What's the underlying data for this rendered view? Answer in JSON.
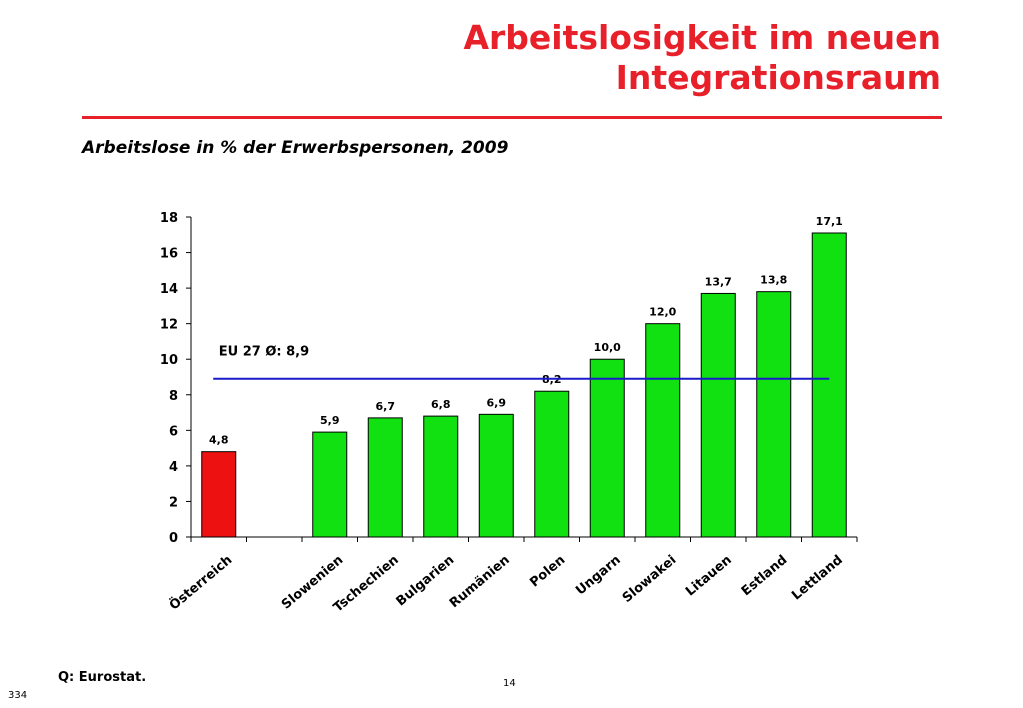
{
  "header": {
    "title_line1": "Arbeitslosigkeit im neuen",
    "title_line2": "Integrationsraum",
    "subtitle": "Arbeitslose in % der Erwerbspersonen, 2009"
  },
  "chart_data": {
    "type": "bar",
    "title": "",
    "xlabel": "",
    "ylabel": "",
    "categories": [
      "Österreich",
      "",
      "Slowenien",
      "Tschechien",
      "Bulgarien",
      "Rumänien",
      "Polen",
      "Ungarn",
      "Slowakei",
      "Litauen",
      "Estland",
      "Lettland"
    ],
    "values": [
      4.8,
      null,
      5.9,
      6.7,
      6.8,
      6.9,
      8.2,
      10.0,
      12.0,
      13.7,
      13.8,
      17.1
    ],
    "value_labels": [
      "4,8",
      "",
      "5,9",
      "6,7",
      "6,8",
      "6,9",
      "8,2",
      "10,0",
      "12,0",
      "13,7",
      "13,8",
      "17,1"
    ],
    "bar_colors": [
      "#ee1111",
      "",
      "#11e011",
      "#11e011",
      "#11e011",
      "#11e011",
      "#11e011",
      "#11e011",
      "#11e011",
      "#11e011",
      "#11e011",
      "#11e011"
    ],
    "ylim": [
      0,
      18
    ],
    "yticks": [
      0,
      2,
      4,
      6,
      8,
      10,
      12,
      14,
      16,
      18
    ],
    "grid": false,
    "reference_line": {
      "value": 8.9,
      "label": "EU 27 Ø: 8,9",
      "color": "#1a1acc"
    }
  },
  "footer": {
    "source": "Q: Eurostat.",
    "page_number": "14",
    "slide_id": "334"
  }
}
